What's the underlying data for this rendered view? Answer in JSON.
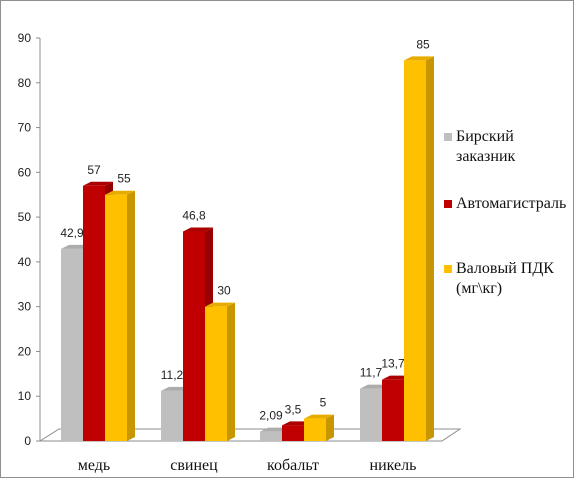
{
  "chart_data": {
    "type": "bar",
    "categories": [
      "медь",
      "свинец",
      "кобальт",
      "никель"
    ],
    "series": [
      {
        "name": "Бирский заказник",
        "color": "#bfbfbf",
        "values": [
          42.9,
          11.2,
          2.09,
          11.7
        ],
        "labels": [
          "42,9",
          "11,2",
          "2,09",
          "11,7"
        ]
      },
      {
        "name": "Автомагистраль",
        "color": "#c00000",
        "values": [
          57,
          46.8,
          3.5,
          13.7
        ],
        "labels": [
          "57",
          "46,8",
          "3,5",
          "13,7"
        ]
      },
      {
        "name": "Валовый ПДК (мг\\кг)",
        "color": "#ffc000",
        "values": [
          55,
          30,
          5,
          85
        ],
        "labels": [
          "55",
          "30",
          "5",
          "85"
        ]
      }
    ],
    "ylim": [
      0,
      90
    ],
    "yticks": [
      0,
      10,
      20,
      30,
      40,
      50,
      60,
      70,
      80,
      90
    ],
    "title": "",
    "xlabel": "",
    "ylabel": "",
    "grid": false,
    "legend_position": "right",
    "style": "3d-clustered-bar"
  }
}
